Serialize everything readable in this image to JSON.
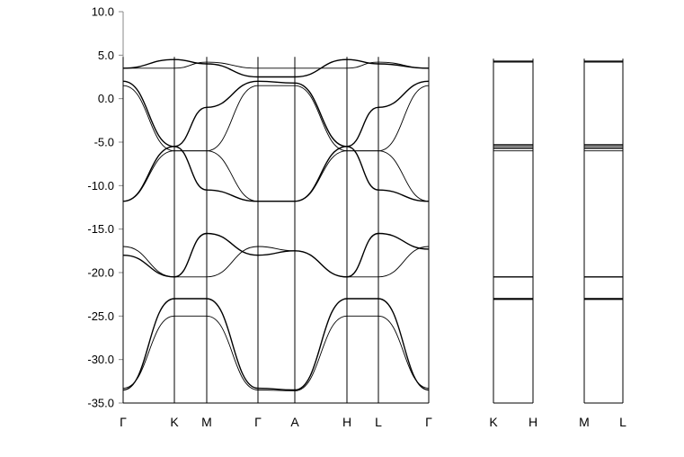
{
  "chart_data": {
    "type": "line",
    "title": "",
    "xlabel": "",
    "ylabel": "",
    "ylim": [
      -35,
      10
    ],
    "yticks": [
      10.0,
      5.0,
      0.0,
      -5.0,
      -10.0,
      -15.0,
      -20.0,
      -25.0,
      -30.0,
      -35.0
    ],
    "ytick_labels": [
      "10.0",
      "5.0",
      "0.0",
      "-5.0",
      "-10.0",
      "-15.0",
      "-20.0",
      "-25.0",
      "-30.0",
      "-35.0"
    ],
    "grid": false,
    "panels": [
      {
        "name": "main-path",
        "x": [
          0,
          1,
          2,
          3,
          4,
          5,
          6,
          7
        ],
        "x_labels": [
          "Γ",
          "K",
          "M",
          "Γ",
          "A",
          "H",
          "L",
          "Γ"
        ],
        "series": [
          {
            "name": "band-1",
            "values": [
              -33.5,
              -23.0,
              -23.0,
              -33.3,
              -33.5,
              -23.0,
              -23.0,
              -33.5
            ]
          },
          {
            "name": "band-2",
            "values": [
              -33.3,
              -25.0,
              -25.0,
              -33.5,
              -33.6,
              -25.0,
              -25.0,
              -33.3
            ]
          },
          {
            "name": "band-3",
            "values": [
              -18.0,
              -20.5,
              -15.5,
              -18.0,
              -17.5,
              -20.5,
              -15.5,
              -17.3
            ]
          },
          {
            "name": "band-4",
            "values": [
              -17.0,
              -20.5,
              -20.5,
              -17.0,
              -17.5,
              -20.5,
              -20.5,
              -17.0
            ]
          },
          {
            "name": "band-5",
            "values": [
              -11.8,
              -5.5,
              -10.5,
              -11.8,
              -11.8,
              -5.5,
              -10.5,
              -11.8
            ]
          },
          {
            "name": "band-6",
            "values": [
              -11.8,
              -6.0,
              -6.0,
              -11.8,
              -11.8,
              -6.0,
              -6.0,
              -11.8
            ]
          },
          {
            "name": "band-7",
            "values": [
              2.0,
              -5.5,
              -1.0,
              2.0,
              1.8,
              -5.5,
              -1.0,
              2.0
            ]
          },
          {
            "name": "band-8",
            "values": [
              1.5,
              -6.0,
              -6.0,
              1.5,
              1.5,
              -6.0,
              -6.0,
              1.5
            ]
          },
          {
            "name": "band-9",
            "values": [
              3.5,
              4.5,
              4.0,
              2.5,
              2.5,
              4.5,
              4.0,
              3.5
            ]
          },
          {
            "name": "band-10",
            "values": [
              3.5,
              3.5,
              4.2,
              3.5,
              3.5,
              3.5,
              4.2,
              3.5
            ]
          }
        ]
      },
      {
        "name": "K-H-path",
        "x": [
          0,
          1
        ],
        "x_labels": [
          "K",
          "H"
        ],
        "series": [
          {
            "name": "KH-1",
            "values": [
              -23.0,
              -23.0
            ]
          },
          {
            "name": "KH-2",
            "values": [
              -23.1,
              -23.1
            ]
          },
          {
            "name": "KH-3",
            "values": [
              -20.5,
              -20.5
            ]
          },
          {
            "name": "KH-4",
            "values": [
              -6.0,
              -6.0
            ]
          },
          {
            "name": "KH-5",
            "values": [
              -5.7,
              -5.7
            ]
          },
          {
            "name": "KH-6",
            "values": [
              -5.5,
              -5.5
            ]
          },
          {
            "name": "KH-7",
            "values": [
              -5.3,
              -5.3
            ]
          },
          {
            "name": "KH-8",
            "values": [
              4.2,
              4.2
            ]
          },
          {
            "name": "KH-9",
            "values": [
              4.3,
              4.3
            ]
          }
        ]
      },
      {
        "name": "M-L-path",
        "x": [
          0,
          1
        ],
        "x_labels": [
          "M",
          "L"
        ],
        "series": [
          {
            "name": "ML-1",
            "values": [
              -23.0,
              -23.0
            ]
          },
          {
            "name": "ML-2",
            "values": [
              -23.1,
              -23.1
            ]
          },
          {
            "name": "ML-3",
            "values": [
              -20.5,
              -20.5
            ]
          },
          {
            "name": "ML-4",
            "values": [
              -6.0,
              -6.0
            ]
          },
          {
            "name": "ML-5",
            "values": [
              -5.7,
              -5.7
            ]
          },
          {
            "name": "ML-6",
            "values": [
              -5.5,
              -5.5
            ]
          },
          {
            "name": "ML-7",
            "values": [
              -5.3,
              -5.3
            ]
          },
          {
            "name": "ML-8",
            "values": [
              4.2,
              4.2
            ]
          },
          {
            "name": "ML-9",
            "values": [
              4.3,
              4.3
            ]
          }
        ]
      }
    ]
  }
}
